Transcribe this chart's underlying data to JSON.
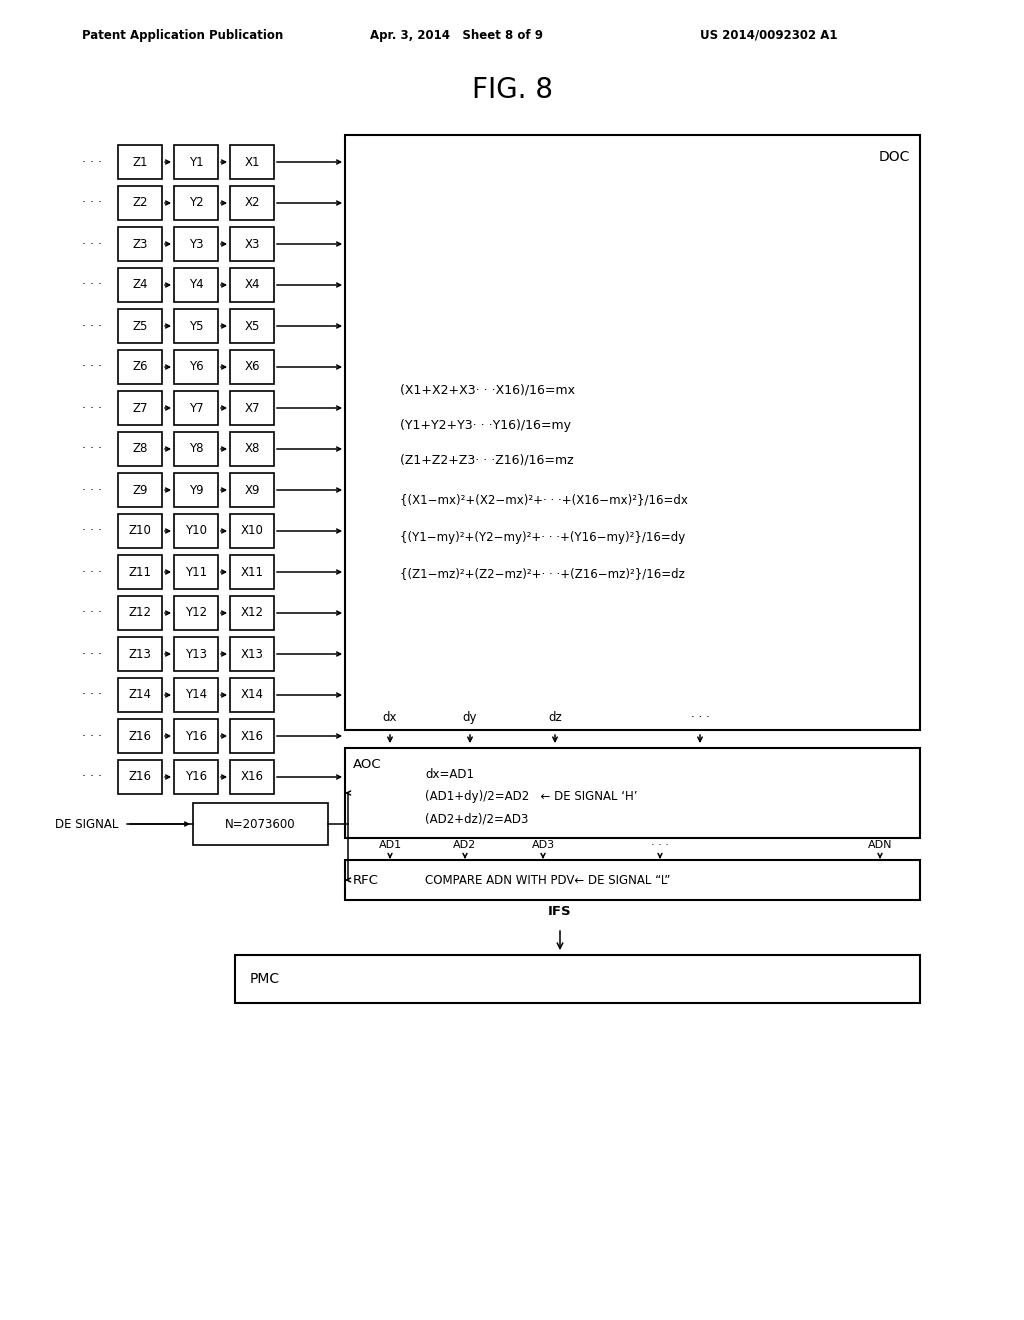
{
  "title": "FIG. 8",
  "patent_header_left": "Patent Application Publication",
  "patent_header_mid": "Apr. 3, 2014   Sheet 8 of 9",
  "patent_header_right": "US 2014/0092302 A1",
  "background_color": "#ffffff",
  "rows": [
    {
      "z": "Z1",
      "y": "Y1",
      "x": "X1"
    },
    {
      "z": "Z2",
      "y": "Y2",
      "x": "X2"
    },
    {
      "z": "Z3",
      "y": "Y3",
      "x": "X3"
    },
    {
      "z": "Z4",
      "y": "Y4",
      "x": "X4"
    },
    {
      "z": "Z5",
      "y": "Y5",
      "x": "X5"
    },
    {
      "z": "Z6",
      "y": "Y6",
      "x": "X6"
    },
    {
      "z": "Z7",
      "y": "Y7",
      "x": "X7"
    },
    {
      "z": "Z8",
      "y": "Y8",
      "x": "X8"
    },
    {
      "z": "Z9",
      "y": "Y9",
      "x": "X9"
    },
    {
      "z": "Z10",
      "y": "Y10",
      "x": "X10"
    },
    {
      "z": "Z11",
      "y": "Y11",
      "x": "X11"
    },
    {
      "z": "Z12",
      "y": "Y12",
      "x": "X12"
    },
    {
      "z": "Z13",
      "y": "Y13",
      "x": "X13"
    },
    {
      "z": "Z14",
      "y": "Y14",
      "x": "X14"
    },
    {
      "z": "Z16",
      "y": "Y16",
      "x": "X16"
    },
    {
      "z": "Z16",
      "y": "Y16",
      "x": "X16"
    }
  ],
  "doc_label": "DOC",
  "formula_lines": [
    "(X1+X2+X3· · ·X16)/16=mx",
    "(Y1+Y2+Y3· · ·Y16)/16=my",
    "(Z1+Z2+Z3· · ·Z16)/16=mz",
    "{(X1−mx)²+(X2−mx)²+· · ·+(X16−mx)²}/16=dx",
    "{(Y1−my)²+(Y2−my)²+· · ·+(Y16−my)²}/16=dy",
    "{(Z1−mz)²+(Z2−mz)²+· · ·+(Z16−mz)²}/16=dz"
  ],
  "aoc_label": "AOC",
  "aoc_lines": [
    "dx=AD1",
    "(AD1+dy)/2=AD2   ← DE SIGNAL ‘H’",
    "(AD2+dz)/2=AD3"
  ],
  "n_box_label": "N=2073600",
  "rfc_label": "RFC",
  "rfc_line": "COMPARE ADN WITH PDV← DE SIGNAL “L”",
  "pmc_label": "PMC",
  "de_signal_label": "DE SIGNAL",
  "ifs_label": "IFS",
  "arrow_labels_top": [
    "dx",
    "dy",
    "dz",
    "· · ·"
  ],
  "arrow_labels_mid": [
    "AD1",
    "AD2",
    "AD3",
    "· · ·",
    "ADN"
  ]
}
